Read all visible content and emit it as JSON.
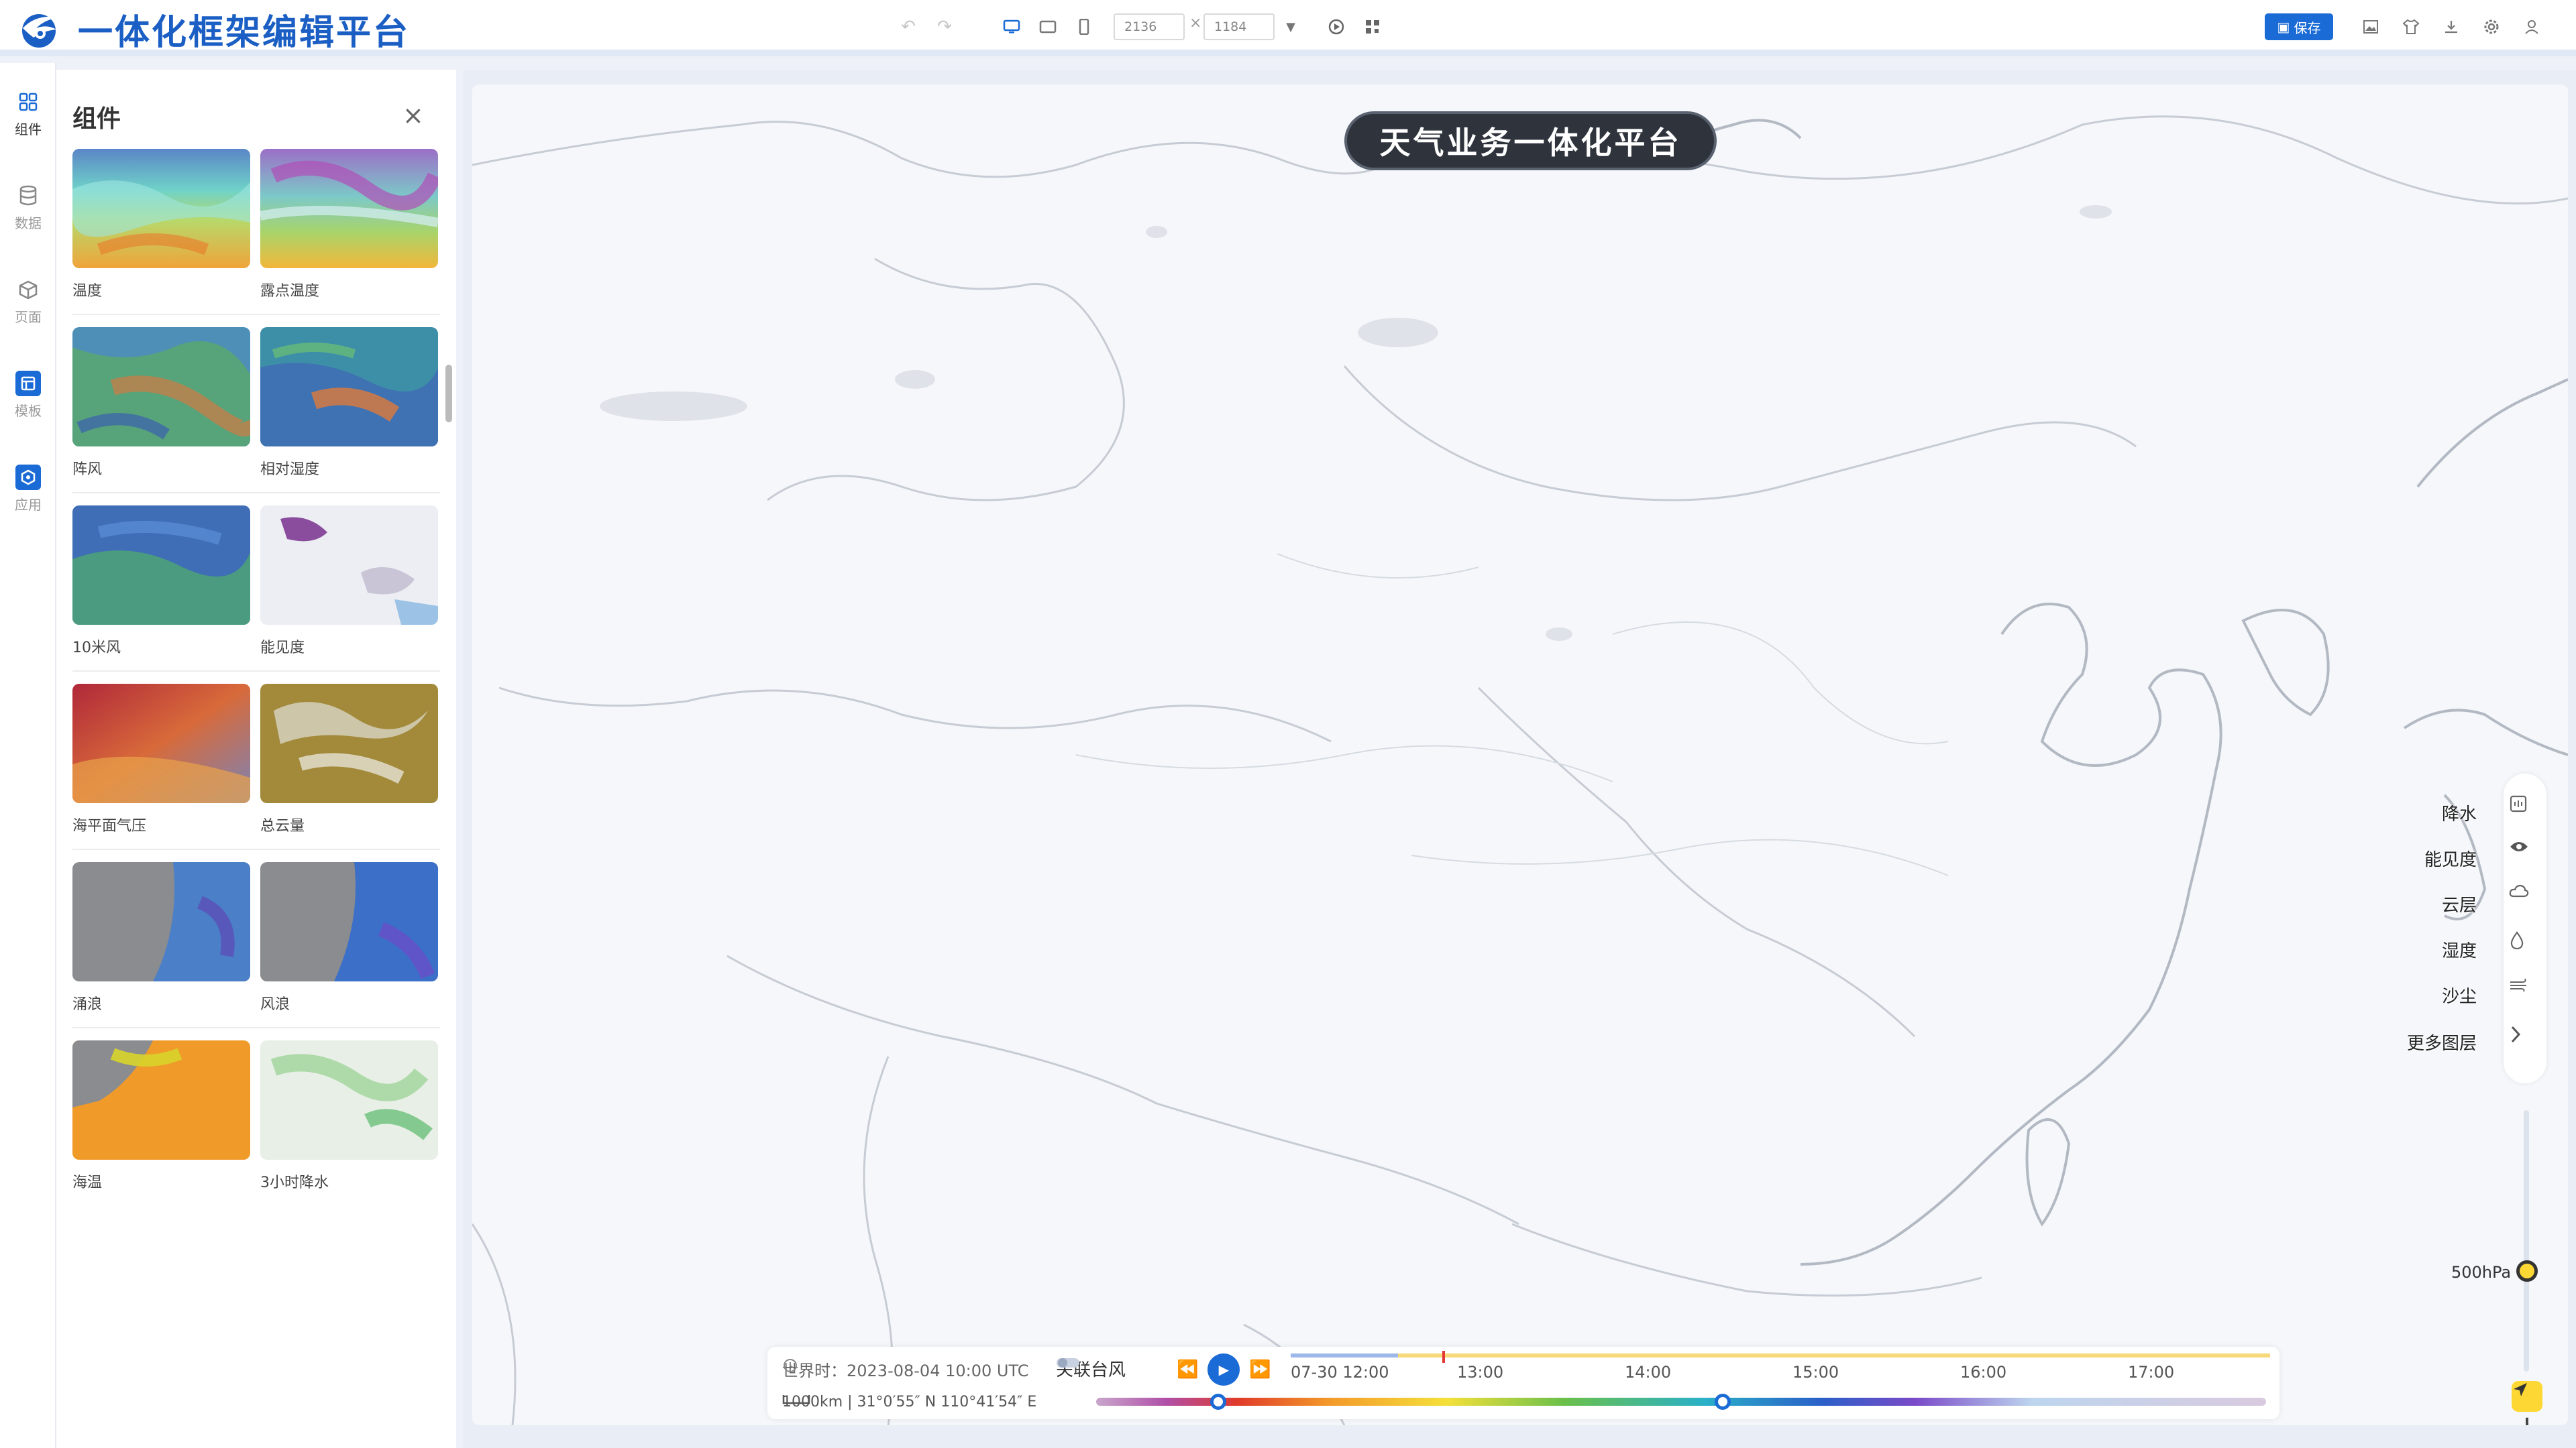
{
  "app": {
    "title": "一体化框架编辑平台"
  },
  "toolbar": {
    "width_value": "2136",
    "height_value": "1184",
    "times": "×",
    "save_label": "保存"
  },
  "leftnav": {
    "items": [
      {
        "label": "组件",
        "icon": "grid-icon",
        "active": true
      },
      {
        "label": "数据",
        "icon": "database-icon"
      },
      {
        "label": "页面",
        "icon": "cube-icon"
      },
      {
        "label": "模板",
        "icon": "template-icon"
      },
      {
        "label": "应用",
        "icon": "app-icon"
      }
    ]
  },
  "panel": {
    "title": "组件",
    "close": "×",
    "items": [
      {
        "label": "温度"
      },
      {
        "label": "露点温度"
      },
      {
        "label": "阵风"
      },
      {
        "label": "相对湿度"
      },
      {
        "label": "10米风"
      },
      {
        "label": "能见度"
      },
      {
        "label": "海平面气压"
      },
      {
        "label": "总云量"
      },
      {
        "label": "涌浪"
      },
      {
        "label": "风浪"
      },
      {
        "label": "海温"
      },
      {
        "label": "3小时降水"
      }
    ]
  },
  "map": {
    "title": "天气业务一体化平台",
    "layers": [
      {
        "label": "降水",
        "icon": "rain-icon"
      },
      {
        "label": "能见度",
        "icon": "eye-icon"
      },
      {
        "label": "云层",
        "icon": "cloud-icon"
      },
      {
        "label": "湿度",
        "icon": "drop-icon"
      },
      {
        "label": "沙尘",
        "icon": "wind-icon"
      },
      {
        "label": "更多图层",
        "icon": "chevron-right-icon"
      }
    ],
    "level": "500hPa",
    "zoom_in": "+",
    "zoom_out": "−"
  },
  "timebar": {
    "utc_label": "世界时：2023-08-04 10:00 UTC",
    "typhoon_label": "关联台风",
    "start_label": "07-30 12:00",
    "ticks": [
      "13:00",
      "14:00",
      "15:00",
      "16:00",
      "17:00"
    ],
    "scale_label": "1000km | 31°0′55″ N 110°41′54″ E"
  },
  "colors": {
    "accent": "#1b6bd6",
    "knob": "#fdd835"
  }
}
